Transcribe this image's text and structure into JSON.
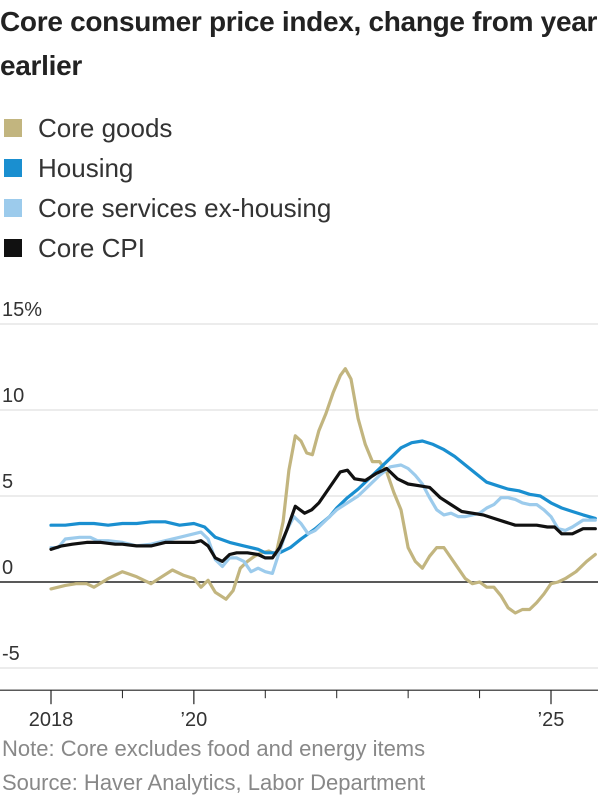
{
  "chart_data": {
    "type": "line",
    "title": "Core consumer price index, change from year earlier",
    "y_unit": "%",
    "ylim": [
      -6,
      15
    ],
    "xlim": [
      2018,
      2025.7
    ],
    "y_ticks": [
      {
        "value": 15,
        "label": "15%"
      },
      {
        "value": 10,
        "label": "10"
      },
      {
        "value": 5,
        "label": "5"
      },
      {
        "value": 0,
        "label": "0"
      },
      {
        "value": -5,
        "label": "-5"
      }
    ],
    "x_ticks": [
      {
        "value": 2018,
        "label": "2018"
      },
      {
        "value": 2020,
        "label": "’20"
      },
      {
        "value": 2025,
        "label": "’25"
      }
    ],
    "x_minor_ticks": [
      2019,
      2021,
      2022,
      2023,
      2024
    ],
    "series": [
      {
        "name": "Core goods",
        "color": "#c2b57f",
        "legend_label": "Core goods",
        "points": [
          [
            2018.0,
            -0.4
          ],
          [
            2018.2,
            -0.2
          ],
          [
            2018.35,
            -0.1
          ],
          [
            2018.5,
            -0.1
          ],
          [
            2018.6,
            -0.3
          ],
          [
            2018.8,
            0.2
          ],
          [
            2019.0,
            0.6
          ],
          [
            2019.2,
            0.3
          ],
          [
            2019.4,
            -0.1
          ],
          [
            2019.55,
            0.3
          ],
          [
            2019.7,
            0.7
          ],
          [
            2019.85,
            0.4
          ],
          [
            2020.0,
            0.2
          ],
          [
            2020.1,
            -0.3
          ],
          [
            2020.2,
            0.1
          ],
          [
            2020.3,
            -0.6
          ],
          [
            2020.45,
            -1.0
          ],
          [
            2020.55,
            -0.5
          ],
          [
            2020.65,
            0.8
          ],
          [
            2020.75,
            1.2
          ],
          [
            2020.85,
            1.5
          ],
          [
            2020.95,
            1.7
          ],
          [
            2021.05,
            1.8
          ],
          [
            2021.15,
            1.6
          ],
          [
            2021.25,
            3.5
          ],
          [
            2021.33,
            6.5
          ],
          [
            2021.42,
            8.5
          ],
          [
            2021.5,
            8.2
          ],
          [
            2021.58,
            7.5
          ],
          [
            2021.66,
            7.4
          ],
          [
            2021.75,
            8.8
          ],
          [
            2021.85,
            9.8
          ],
          [
            2021.95,
            11.0
          ],
          [
            2022.05,
            12.0
          ],
          [
            2022.12,
            12.4
          ],
          [
            2022.2,
            11.8
          ],
          [
            2022.3,
            9.5
          ],
          [
            2022.4,
            8.0
          ],
          [
            2022.5,
            7.0
          ],
          [
            2022.6,
            7.0
          ],
          [
            2022.7,
            6.4
          ],
          [
            2022.8,
            5.2
          ],
          [
            2022.9,
            4.2
          ],
          [
            2023.0,
            2.0
          ],
          [
            2023.1,
            1.2
          ],
          [
            2023.2,
            0.8
          ],
          [
            2023.3,
            1.5
          ],
          [
            2023.4,
            2.0
          ],
          [
            2023.5,
            2.0
          ],
          [
            2023.6,
            1.4
          ],
          [
            2023.7,
            0.8
          ],
          [
            2023.8,
            0.2
          ],
          [
            2023.9,
            -0.1
          ],
          [
            2024.0,
            0.0
          ],
          [
            2024.1,
            -0.3
          ],
          [
            2024.2,
            -0.3
          ],
          [
            2024.3,
            -0.8
          ],
          [
            2024.4,
            -1.5
          ],
          [
            2024.5,
            -1.8
          ],
          [
            2024.6,
            -1.6
          ],
          [
            2024.7,
            -1.6
          ],
          [
            2024.8,
            -1.2
          ],
          [
            2024.9,
            -0.7
          ],
          [
            2025.0,
            -0.1
          ],
          [
            2025.1,
            0.0
          ],
          [
            2025.2,
            0.2
          ],
          [
            2025.35,
            0.6
          ],
          [
            2025.5,
            1.2
          ],
          [
            2025.62,
            1.6
          ]
        ]
      },
      {
        "name": "Housing",
        "color": "#1a8fd0",
        "legend_label": "Housing",
        "points": [
          [
            2018.0,
            3.3
          ],
          [
            2018.2,
            3.3
          ],
          [
            2018.4,
            3.4
          ],
          [
            2018.6,
            3.4
          ],
          [
            2018.8,
            3.3
          ],
          [
            2019.0,
            3.4
          ],
          [
            2019.2,
            3.4
          ],
          [
            2019.4,
            3.5
          ],
          [
            2019.6,
            3.5
          ],
          [
            2019.8,
            3.3
          ],
          [
            2020.0,
            3.4
          ],
          [
            2020.15,
            3.2
          ],
          [
            2020.3,
            2.6
          ],
          [
            2020.5,
            2.3
          ],
          [
            2020.7,
            2.1
          ],
          [
            2020.9,
            1.9
          ],
          [
            2021.0,
            1.7
          ],
          [
            2021.2,
            1.7
          ],
          [
            2021.35,
            2.0
          ],
          [
            2021.5,
            2.5
          ],
          [
            2021.7,
            3.1
          ],
          [
            2021.9,
            3.8
          ],
          [
            2022.0,
            4.3
          ],
          [
            2022.15,
            4.9
          ],
          [
            2022.3,
            5.4
          ],
          [
            2022.45,
            6.0
          ],
          [
            2022.6,
            6.6
          ],
          [
            2022.75,
            7.2
          ],
          [
            2022.9,
            7.8
          ],
          [
            2023.05,
            8.1
          ],
          [
            2023.2,
            8.2
          ],
          [
            2023.35,
            8.0
          ],
          [
            2023.5,
            7.7
          ],
          [
            2023.65,
            7.3
          ],
          [
            2023.8,
            6.8
          ],
          [
            2023.95,
            6.3
          ],
          [
            2024.1,
            5.8
          ],
          [
            2024.25,
            5.6
          ],
          [
            2024.4,
            5.4
          ],
          [
            2024.55,
            5.3
          ],
          [
            2024.7,
            5.1
          ],
          [
            2024.85,
            5.0
          ],
          [
            2025.0,
            4.6
          ],
          [
            2025.15,
            4.3
          ],
          [
            2025.3,
            4.1
          ],
          [
            2025.45,
            3.9
          ],
          [
            2025.62,
            3.7
          ]
        ]
      },
      {
        "name": "Core services ex-housing",
        "color": "#9ccbec",
        "legend_label": "Core services ex-housing",
        "points": [
          [
            2018.0,
            2.0
          ],
          [
            2018.1,
            2.0
          ],
          [
            2018.2,
            2.5
          ],
          [
            2018.4,
            2.6
          ],
          [
            2018.55,
            2.6
          ],
          [
            2018.65,
            2.4
          ],
          [
            2018.8,
            2.4
          ],
          [
            2019.0,
            2.3
          ],
          [
            2019.2,
            2.1
          ],
          [
            2019.4,
            2.2
          ],
          [
            2019.6,
            2.4
          ],
          [
            2019.8,
            2.6
          ],
          [
            2020.0,
            2.8
          ],
          [
            2020.1,
            2.9
          ],
          [
            2020.2,
            2.5
          ],
          [
            2020.3,
            1.3
          ],
          [
            2020.4,
            0.9
          ],
          [
            2020.5,
            1.4
          ],
          [
            2020.6,
            1.4
          ],
          [
            2020.7,
            1.2
          ],
          [
            2020.8,
            0.6
          ],
          [
            2020.9,
            0.8
          ],
          [
            2021.0,
            0.6
          ],
          [
            2021.1,
            0.5
          ],
          [
            2021.2,
            1.8
          ],
          [
            2021.3,
            3.0
          ],
          [
            2021.4,
            3.8
          ],
          [
            2021.5,
            3.4
          ],
          [
            2021.6,
            2.8
          ],
          [
            2021.7,
            3.0
          ],
          [
            2021.85,
            3.6
          ],
          [
            2022.0,
            4.2
          ],
          [
            2022.15,
            4.6
          ],
          [
            2022.3,
            5.0
          ],
          [
            2022.45,
            5.6
          ],
          [
            2022.6,
            6.2
          ],
          [
            2022.75,
            6.7
          ],
          [
            2022.9,
            6.8
          ],
          [
            2023.0,
            6.6
          ],
          [
            2023.1,
            6.2
          ],
          [
            2023.2,
            5.7
          ],
          [
            2023.3,
            4.9
          ],
          [
            2023.4,
            4.2
          ],
          [
            2023.5,
            3.9
          ],
          [
            2023.6,
            4.0
          ],
          [
            2023.7,
            3.8
          ],
          [
            2023.8,
            3.8
          ],
          [
            2023.9,
            3.9
          ],
          [
            2024.0,
            4.0
          ],
          [
            2024.1,
            4.3
          ],
          [
            2024.2,
            4.5
          ],
          [
            2024.3,
            4.9
          ],
          [
            2024.4,
            4.9
          ],
          [
            2024.5,
            4.8
          ],
          [
            2024.6,
            4.6
          ],
          [
            2024.7,
            4.5
          ],
          [
            2024.8,
            4.5
          ],
          [
            2024.9,
            4.2
          ],
          [
            2025.0,
            3.8
          ],
          [
            2025.1,
            3.1
          ],
          [
            2025.2,
            3.0
          ],
          [
            2025.3,
            3.2
          ],
          [
            2025.45,
            3.6
          ],
          [
            2025.62,
            3.6
          ]
        ]
      },
      {
        "name": "Core CPI",
        "color": "#111111",
        "legend_label": "Core CPI",
        "points": [
          [
            2018.0,
            1.9
          ],
          [
            2018.15,
            2.1
          ],
          [
            2018.3,
            2.2
          ],
          [
            2018.5,
            2.3
          ],
          [
            2018.7,
            2.3
          ],
          [
            2018.9,
            2.2
          ],
          [
            2019.0,
            2.2
          ],
          [
            2019.2,
            2.1
          ],
          [
            2019.4,
            2.1
          ],
          [
            2019.6,
            2.3
          ],
          [
            2019.8,
            2.3
          ],
          [
            2020.0,
            2.3
          ],
          [
            2020.1,
            2.4
          ],
          [
            2020.2,
            2.1
          ],
          [
            2020.3,
            1.4
          ],
          [
            2020.4,
            1.2
          ],
          [
            2020.5,
            1.6
          ],
          [
            2020.6,
            1.7
          ],
          [
            2020.75,
            1.7
          ],
          [
            2020.9,
            1.6
          ],
          [
            2021.0,
            1.4
          ],
          [
            2021.1,
            1.4
          ],
          [
            2021.2,
            2.0
          ],
          [
            2021.3,
            3.0
          ],
          [
            2021.42,
            4.4
          ],
          [
            2021.55,
            4.0
          ],
          [
            2021.65,
            4.2
          ],
          [
            2021.75,
            4.6
          ],
          [
            2021.9,
            5.5
          ],
          [
            2022.05,
            6.4
          ],
          [
            2022.15,
            6.5
          ],
          [
            2022.25,
            6.0
          ],
          [
            2022.4,
            5.9
          ],
          [
            2022.55,
            6.3
          ],
          [
            2022.7,
            6.6
          ],
          [
            2022.85,
            6.0
          ],
          [
            2023.0,
            5.7
          ],
          [
            2023.15,
            5.6
          ],
          [
            2023.3,
            5.5
          ],
          [
            2023.45,
            4.9
          ],
          [
            2023.6,
            4.5
          ],
          [
            2023.75,
            4.1
          ],
          [
            2023.9,
            4.0
          ],
          [
            2024.05,
            3.9
          ],
          [
            2024.2,
            3.7
          ],
          [
            2024.35,
            3.5
          ],
          [
            2024.5,
            3.3
          ],
          [
            2024.65,
            3.3
          ],
          [
            2024.8,
            3.3
          ],
          [
            2024.95,
            3.2
          ],
          [
            2025.05,
            3.2
          ],
          [
            2025.15,
            2.8
          ],
          [
            2025.3,
            2.8
          ],
          [
            2025.45,
            3.1
          ],
          [
            2025.62,
            3.1
          ]
        ]
      }
    ]
  },
  "notes": {
    "note": "Note: Core excludes food and energy items",
    "source": "Source: Haver Analytics, Labor Department"
  }
}
